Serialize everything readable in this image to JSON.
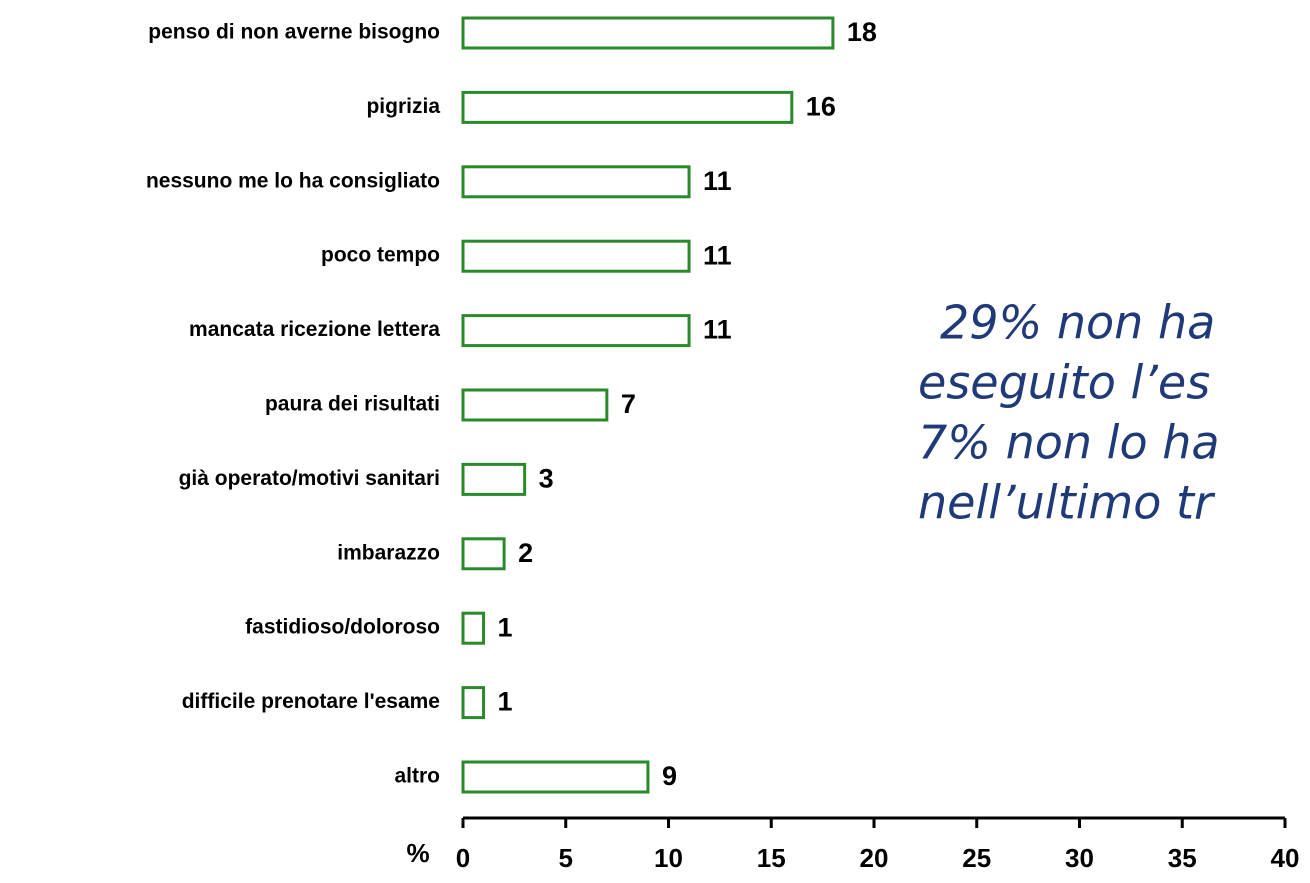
{
  "chart_data": {
    "type": "bar",
    "orientation": "horizontal",
    "categories": [
      "penso di non averne bisogno",
      "pigrizia",
      "nessuno me lo ha consigliato",
      "poco tempo",
      "mancata ricezione lettera",
      "paura dei risultati",
      "già operato/motivi sanitari",
      "imbarazzo",
      "fastidioso/doloroso",
      "difficile prenotare l'esame",
      "altro"
    ],
    "values": [
      18,
      16,
      11,
      11,
      11,
      7,
      3,
      2,
      1,
      1,
      9
    ],
    "color": "#2a8a2a",
    "xlim": [
      0,
      40
    ],
    "xticks": [
      0,
      5,
      10,
      15,
      20,
      25,
      30,
      35,
      40
    ],
    "xlabel": "%",
    "annotation": [
      "29% non ha",
      "eseguito l’es",
      "7% non lo ha",
      "nell’ultimo tr"
    ]
  }
}
